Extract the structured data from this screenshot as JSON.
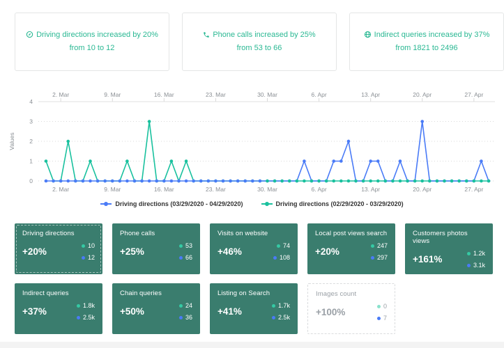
{
  "summary_cards": [
    {
      "icon": "directions-compass-icon",
      "line1": "Driving directions increased by 20%",
      "line2": "from 10 to 12"
    },
    {
      "icon": "phone-icon",
      "line1": "Phone calls increased by 25%",
      "line2": "from 53 to 66"
    },
    {
      "icon": "globe-icon",
      "line1": "Indirect queries increased by 37%",
      "line2": "from 1821 to 2496"
    }
  ],
  "chart_data": {
    "type": "line",
    "title": "",
    "ylabel": "Values",
    "ylim": [
      0,
      4
    ],
    "yticks": [
      0,
      1,
      2,
      3,
      4
    ],
    "grid": "horizontal-dotted",
    "legend_position": "bottom",
    "x_start_date": "02/29/2020",
    "x_end_date": "04/29/2020",
    "n_points": 61,
    "x_tick_labels": [
      "2. Mar",
      "9. Mar",
      "16. Mar",
      "23. Mar",
      "30. Mar",
      "6. Apr",
      "13. Apr",
      "20. Apr",
      "27. Apr"
    ],
    "x_tick_day_indices": [
      2,
      9,
      16,
      23,
      30,
      37,
      44,
      51,
      58
    ],
    "series": [
      {
        "name": "Driving directions (03/29/2020 - 04/29/2020)",
        "color": "#4a7bf7",
        "total": 12,
        "values": [
          0,
          0,
          0,
          0,
          0,
          0,
          0,
          0,
          0,
          0,
          0,
          0,
          0,
          0,
          0,
          0,
          0,
          0,
          0,
          0,
          0,
          0,
          0,
          0,
          0,
          0,
          0,
          0,
          0,
          0,
          0,
          0,
          0,
          0,
          0,
          1,
          0,
          0,
          0,
          1,
          1,
          2,
          0,
          0,
          1,
          1,
          0,
          0,
          1,
          0,
          0,
          3,
          0,
          0,
          0,
          0,
          0,
          0,
          0,
          1,
          0
        ]
      },
      {
        "name": "Driving directions (02/29/2020 - 03/29/2020)",
        "color": "#19c19e",
        "total": 10,
        "values": [
          1,
          0,
          0,
          2,
          0,
          0,
          1,
          0,
          0,
          0,
          0,
          1,
          0,
          0,
          3,
          0,
          0,
          1,
          0,
          1,
          0,
          0,
          0,
          0,
          0,
          0,
          0,
          0,
          0,
          0,
          0,
          0,
          0,
          0,
          0,
          0,
          0,
          0,
          0,
          0,
          0,
          0,
          0,
          0,
          0,
          0,
          0,
          0,
          0,
          0,
          0,
          0,
          0,
          0,
          0,
          0,
          0,
          0,
          0,
          0,
          0
        ]
      }
    ]
  },
  "metric_cards": {
    "row1": [
      {
        "title": "Driving directions",
        "change": "+20%",
        "previous": "10",
        "current": "12"
      },
      {
        "title": "Phone calls",
        "change": "+25%",
        "previous": "53",
        "current": "66"
      },
      {
        "title": "Visits on website",
        "change": "+46%",
        "previous": "74",
        "current": "108"
      },
      {
        "title": "Local post views search",
        "change": "+20%",
        "previous": "247",
        "current": "297"
      },
      {
        "title": "Customers photos views",
        "change": "+161%",
        "previous": "1.2k",
        "current": "3.1k"
      }
    ],
    "row2": [
      {
        "title": "Indirect queries",
        "change": "+37%",
        "previous": "1.8k",
        "current": "2.5k"
      },
      {
        "title": "Chain queries",
        "change": "+50%",
        "previous": "24",
        "current": "36"
      },
      {
        "title": "Listing on Search",
        "change": "+41%",
        "previous": "1.7k",
        "current": "2.5k"
      },
      {
        "title": "Images count",
        "change": "+100%",
        "previous": "0",
        "current": "7"
      }
    ]
  },
  "colors": {
    "summary_text": "#2ab893",
    "chart_blue": "#4a7bf7",
    "chart_teal": "#19c19e",
    "metric_card_bg": "#3a7d6e",
    "white_card_text": "#9aa0a6",
    "axis_text": "#8a8f94",
    "grid_line": "#d9d9d9"
  }
}
